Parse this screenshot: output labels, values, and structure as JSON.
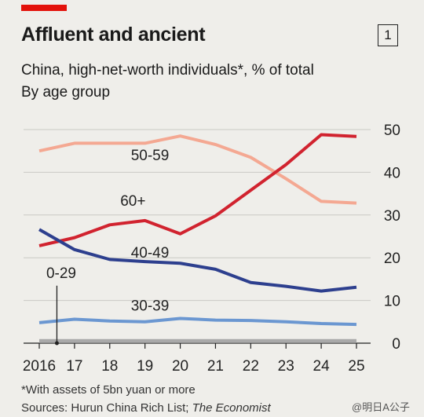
{
  "header": {
    "title": "Affluent and ancient",
    "badge": "1",
    "subtitle": "China, high-net-worth individuals*, % of total",
    "subtitle2": "By age group"
  },
  "footer": {
    "footnote": "*With assets of 5bn yuan or more",
    "sources_prefix": "Sources: Hurun China Rich List; ",
    "sources_italic": "The Economist",
    "watermark": "@明日A公子"
  },
  "colors": {
    "accent": "#e3120b",
    "s50_59": "#f4a892",
    "s60plus": "#d1232f",
    "s40_49": "#2d3f8e",
    "s30_39": "#6b97d1",
    "s0_29": "#a9a9a9",
    "grid": "#c9c9c4"
  },
  "chart_data": {
    "type": "line",
    "x": [
      2016,
      2017,
      2018,
      2019,
      2020,
      2021,
      2022,
      2023,
      2024,
      2025
    ],
    "x_tick_labels": [
      "2016",
      "17",
      "18",
      "19",
      "20",
      "21",
      "22",
      "23",
      "24",
      "25"
    ],
    "ylim": [
      0,
      50
    ],
    "y_ticks": [
      0,
      10,
      20,
      30,
      40,
      50
    ],
    "y_tick_labels": [
      "0",
      "10",
      "20",
      "30",
      "40",
      "50"
    ],
    "y_axis_side": "right",
    "grid": true,
    "series": [
      {
        "name": "50-59",
        "color_key": "s50_59",
        "values": [
          45,
          46.8,
          46.8,
          46.8,
          48.5,
          46.5,
          43.5,
          38.5,
          33.2,
          32.8
        ],
        "label_x": 2018.6,
        "label_y": 42.8
      },
      {
        "name": "60+",
        "color_key": "s60plus",
        "values": [
          22.8,
          24.7,
          27.7,
          28.7,
          25.6,
          29.8,
          35.8,
          41.8,
          48.8,
          48.4
        ],
        "label_x": 2018.3,
        "label_y": 32.2
      },
      {
        "name": "40-49",
        "color_key": "s40_49",
        "values": [
          26.6,
          21.9,
          19.6,
          19.1,
          18.7,
          17.3,
          14.2,
          13.3,
          12.2,
          13.1
        ],
        "label_x": 2018.6,
        "label_y": 20.0
      },
      {
        "name": "30-39",
        "color_key": "s30_39",
        "values": [
          4.8,
          5.6,
          5.2,
          5.0,
          5.8,
          5.4,
          5.3,
          5.0,
          4.6,
          4.4
        ],
        "label_x": 2018.6,
        "label_y": 7.6
      },
      {
        "name": "0-29",
        "color_key": "s0_29",
        "values": [
          0.5,
          0.5,
          0.5,
          0.5,
          0.5,
          0.5,
          0.5,
          0.5,
          0.5,
          0.5
        ],
        "label_x": 2016.2,
        "label_y": 15.3
      }
    ]
  }
}
